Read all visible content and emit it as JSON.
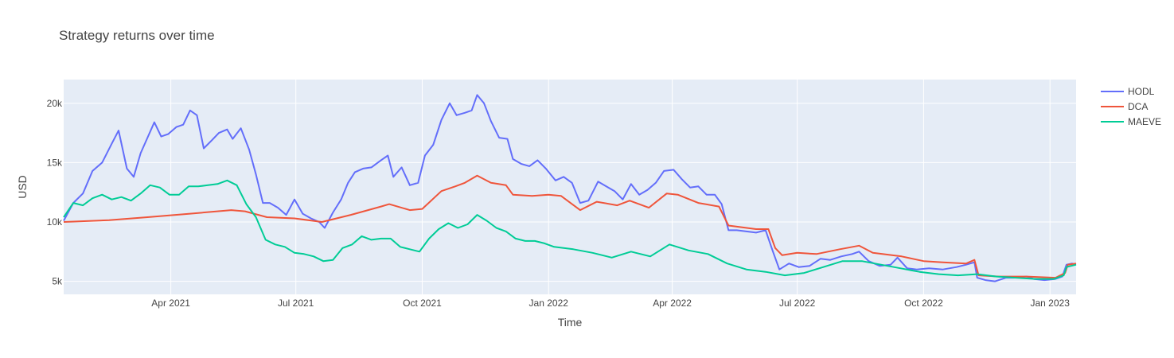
{
  "chart_data": {
    "type": "line",
    "title": "Strategy returns over time",
    "xlabel": "Time",
    "ylabel": "USD",
    "xlim": [
      "2021-01-13",
      "2023-01-20"
    ],
    "ylim": [
      3900,
      22000
    ],
    "x_ticks": [
      {
        "date": "2021-04-01",
        "label": "Apr 2021"
      },
      {
        "date": "2021-07-01",
        "label": "Jul 2021"
      },
      {
        "date": "2021-10-01",
        "label": "Oct 2021"
      },
      {
        "date": "2022-01-01",
        "label": "Jan 2022"
      },
      {
        "date": "2022-04-01",
        "label": "Apr 2022"
      },
      {
        "date": "2022-07-01",
        "label": "Jul 2022"
      },
      {
        "date": "2022-10-01",
        "label": "Oct 2022"
      },
      {
        "date": "2023-01-01",
        "label": "Jan 2023"
      }
    ],
    "y_ticks": [
      {
        "value": 5000,
        "label": "5k"
      },
      {
        "value": 10000,
        "label": "10k"
      },
      {
        "value": 15000,
        "label": "15k"
      },
      {
        "value": 20000,
        "label": "20k"
      }
    ],
    "grid": true,
    "legend_position": "top-right",
    "colors": {
      "plot_bg": "#e5ecf6",
      "grid": "#ffffff"
    },
    "series": [
      {
        "name": "HODL",
        "color": "#636efa",
        "points": [
          [
            "2021-01-13",
            10100
          ],
          [
            "2021-01-20",
            11600
          ],
          [
            "2021-01-27",
            12400
          ],
          [
            "2021-02-03",
            14300
          ],
          [
            "2021-02-10",
            15000
          ],
          [
            "2021-02-17",
            16600
          ],
          [
            "2021-02-22",
            17700
          ],
          [
            "2021-02-28",
            14500
          ],
          [
            "2021-03-05",
            13800
          ],
          [
            "2021-03-10",
            15800
          ],
          [
            "2021-03-15",
            17100
          ],
          [
            "2021-03-20",
            18400
          ],
          [
            "2021-03-25",
            17200
          ],
          [
            "2021-03-30",
            17400
          ],
          [
            "2021-04-05",
            18000
          ],
          [
            "2021-04-10",
            18200
          ],
          [
            "2021-04-15",
            19400
          ],
          [
            "2021-04-20",
            19000
          ],
          [
            "2021-04-25",
            16200
          ],
          [
            "2021-05-01",
            16900
          ],
          [
            "2021-05-06",
            17500
          ],
          [
            "2021-05-12",
            17800
          ],
          [
            "2021-05-16",
            17000
          ],
          [
            "2021-05-22",
            17900
          ],
          [
            "2021-05-28",
            16100
          ],
          [
            "2021-06-02",
            14000
          ],
          [
            "2021-06-07",
            11600
          ],
          [
            "2021-06-12",
            11600
          ],
          [
            "2021-06-18",
            11200
          ],
          [
            "2021-06-24",
            10600
          ],
          [
            "2021-06-30",
            11900
          ],
          [
            "2021-07-06",
            10700
          ],
          [
            "2021-07-12",
            10300
          ],
          [
            "2021-07-18",
            10000
          ],
          [
            "2021-07-22",
            9500
          ],
          [
            "2021-07-28",
            10800
          ],
          [
            "2021-08-03",
            11900
          ],
          [
            "2021-08-08",
            13300
          ],
          [
            "2021-08-13",
            14200
          ],
          [
            "2021-08-19",
            14500
          ],
          [
            "2021-08-25",
            14600
          ],
          [
            "2021-09-01",
            15200
          ],
          [
            "2021-09-06",
            15600
          ],
          [
            "2021-09-10",
            13800
          ],
          [
            "2021-09-16",
            14600
          ],
          [
            "2021-09-22",
            13100
          ],
          [
            "2021-09-28",
            13300
          ],
          [
            "2021-10-03",
            15600
          ],
          [
            "2021-10-09",
            16500
          ],
          [
            "2021-10-15",
            18600
          ],
          [
            "2021-10-21",
            20000
          ],
          [
            "2021-10-26",
            19000
          ],
          [
            "2021-11-01",
            19200
          ],
          [
            "2021-11-06",
            19400
          ],
          [
            "2021-11-10",
            20700
          ],
          [
            "2021-11-15",
            20000
          ],
          [
            "2021-11-20",
            18500
          ],
          [
            "2021-11-26",
            17100
          ],
          [
            "2021-12-02",
            17000
          ],
          [
            "2021-12-06",
            15300
          ],
          [
            "2021-12-12",
            14900
          ],
          [
            "2021-12-18",
            14700
          ],
          [
            "2021-12-24",
            15200
          ],
          [
            "2021-12-30",
            14500
          ],
          [
            "2022-01-06",
            13500
          ],
          [
            "2022-01-12",
            13800
          ],
          [
            "2022-01-18",
            13300
          ],
          [
            "2022-01-24",
            11600
          ],
          [
            "2022-01-30",
            11800
          ],
          [
            "2022-02-06",
            13400
          ],
          [
            "2022-02-12",
            13000
          ],
          [
            "2022-02-18",
            12600
          ],
          [
            "2022-02-24",
            11900
          ],
          [
            "2022-03-02",
            13200
          ],
          [
            "2022-03-08",
            12300
          ],
          [
            "2022-03-14",
            12700
          ],
          [
            "2022-03-20",
            13300
          ],
          [
            "2022-03-26",
            14300
          ],
          [
            "2022-04-02",
            14400
          ],
          [
            "2022-04-08",
            13600
          ],
          [
            "2022-04-14",
            12900
          ],
          [
            "2022-04-20",
            13000
          ],
          [
            "2022-04-26",
            12300
          ],
          [
            "2022-05-02",
            12300
          ],
          [
            "2022-05-07",
            11500
          ],
          [
            "2022-05-12",
            9300
          ],
          [
            "2022-05-18",
            9300
          ],
          [
            "2022-05-25",
            9200
          ],
          [
            "2022-06-01",
            9100
          ],
          [
            "2022-06-08",
            9300
          ],
          [
            "2022-06-13",
            7600
          ],
          [
            "2022-06-18",
            6000
          ],
          [
            "2022-06-25",
            6500
          ],
          [
            "2022-07-02",
            6200
          ],
          [
            "2022-07-10",
            6300
          ],
          [
            "2022-07-18",
            6900
          ],
          [
            "2022-07-25",
            6800
          ],
          [
            "2022-08-02",
            7100
          ],
          [
            "2022-08-10",
            7300
          ],
          [
            "2022-08-15",
            7500
          ],
          [
            "2022-08-22",
            6700
          ],
          [
            "2022-08-30",
            6300
          ],
          [
            "2022-09-07",
            6400
          ],
          [
            "2022-09-12",
            7000
          ],
          [
            "2022-09-19",
            6100
          ],
          [
            "2022-09-26",
            6000
          ],
          [
            "2022-10-05",
            6100
          ],
          [
            "2022-10-15",
            6000
          ],
          [
            "2022-10-25",
            6200
          ],
          [
            "2022-11-01",
            6400
          ],
          [
            "2022-11-07",
            6600
          ],
          [
            "2022-11-09",
            5300
          ],
          [
            "2022-11-15",
            5100
          ],
          [
            "2022-11-22",
            5000
          ],
          [
            "2022-11-30",
            5300
          ],
          [
            "2022-12-06",
            5300
          ],
          [
            "2022-12-15",
            5400
          ],
          [
            "2022-12-20",
            5200
          ],
          [
            "2022-12-28",
            5100
          ],
          [
            "2023-01-05",
            5200
          ],
          [
            "2023-01-10",
            5400
          ],
          [
            "2023-01-13",
            6400
          ],
          [
            "2023-01-17",
            6500
          ],
          [
            "2023-01-20",
            6400
          ]
        ]
      },
      {
        "name": "DCA",
        "color": "#ef553b",
        "points": [
          [
            "2021-01-13",
            10000
          ],
          [
            "2021-02-15",
            10150
          ],
          [
            "2021-03-15",
            10400
          ],
          [
            "2021-04-15",
            10700
          ],
          [
            "2021-05-15",
            11000
          ],
          [
            "2021-05-25",
            10900
          ],
          [
            "2021-06-10",
            10400
          ],
          [
            "2021-06-30",
            10300
          ],
          [
            "2021-07-20",
            10000
          ],
          [
            "2021-08-10",
            10600
          ],
          [
            "2021-09-01",
            11300
          ],
          [
            "2021-09-07",
            11500
          ],
          [
            "2021-09-22",
            11000
          ],
          [
            "2021-10-01",
            11100
          ],
          [
            "2021-10-15",
            12600
          ],
          [
            "2021-10-25",
            13000
          ],
          [
            "2021-11-01",
            13300
          ],
          [
            "2021-11-10",
            13900
          ],
          [
            "2021-11-20",
            13300
          ],
          [
            "2021-12-01",
            13100
          ],
          [
            "2021-12-06",
            12300
          ],
          [
            "2021-12-20",
            12200
          ],
          [
            "2022-01-01",
            12300
          ],
          [
            "2022-01-10",
            12200
          ],
          [
            "2022-01-24",
            11000
          ],
          [
            "2022-02-05",
            11700
          ],
          [
            "2022-02-20",
            11400
          ],
          [
            "2022-03-01",
            11800
          ],
          [
            "2022-03-15",
            11200
          ],
          [
            "2022-03-28",
            12400
          ],
          [
            "2022-04-05",
            12300
          ],
          [
            "2022-04-20",
            11600
          ],
          [
            "2022-05-05",
            11300
          ],
          [
            "2022-05-12",
            9700
          ],
          [
            "2022-06-01",
            9400
          ],
          [
            "2022-06-10",
            9400
          ],
          [
            "2022-06-15",
            7800
          ],
          [
            "2022-06-20",
            7200
          ],
          [
            "2022-07-01",
            7400
          ],
          [
            "2022-07-15",
            7300
          ],
          [
            "2022-08-01",
            7700
          ],
          [
            "2022-08-15",
            8000
          ],
          [
            "2022-08-25",
            7400
          ],
          [
            "2022-09-15",
            7100
          ],
          [
            "2022-10-01",
            6700
          ],
          [
            "2022-10-15",
            6600
          ],
          [
            "2022-11-01",
            6500
          ],
          [
            "2022-11-07",
            6800
          ],
          [
            "2022-11-10",
            5500
          ],
          [
            "2022-11-25",
            5400
          ],
          [
            "2022-12-15",
            5400
          ],
          [
            "2023-01-05",
            5300
          ],
          [
            "2023-01-12",
            5700
          ],
          [
            "2023-01-14",
            6400
          ],
          [
            "2023-01-20",
            6500
          ]
        ]
      },
      {
        "name": "MAEVE",
        "color": "#00cc96",
        "points": [
          [
            "2021-01-13",
            10400
          ],
          [
            "2021-01-20",
            11600
          ],
          [
            "2021-01-27",
            11400
          ],
          [
            "2021-02-03",
            12000
          ],
          [
            "2021-02-10",
            12300
          ],
          [
            "2021-02-17",
            11900
          ],
          [
            "2021-02-24",
            12100
          ],
          [
            "2021-03-03",
            11800
          ],
          [
            "2021-03-10",
            12400
          ],
          [
            "2021-03-17",
            13100
          ],
          [
            "2021-03-24",
            12900
          ],
          [
            "2021-03-31",
            12300
          ],
          [
            "2021-04-07",
            12300
          ],
          [
            "2021-04-14",
            13000
          ],
          [
            "2021-04-21",
            13000
          ],
          [
            "2021-04-28",
            13100
          ],
          [
            "2021-05-05",
            13200
          ],
          [
            "2021-05-12",
            13500
          ],
          [
            "2021-05-19",
            13100
          ],
          [
            "2021-05-26",
            11500
          ],
          [
            "2021-06-02",
            10400
          ],
          [
            "2021-06-09",
            8500
          ],
          [
            "2021-06-16",
            8100
          ],
          [
            "2021-06-23",
            7900
          ],
          [
            "2021-06-30",
            7400
          ],
          [
            "2021-07-07",
            7300
          ],
          [
            "2021-07-14",
            7100
          ],
          [
            "2021-07-21",
            6700
          ],
          [
            "2021-07-28",
            6800
          ],
          [
            "2021-08-04",
            7800
          ],
          [
            "2021-08-11",
            8100
          ],
          [
            "2021-08-18",
            8800
          ],
          [
            "2021-08-25",
            8500
          ],
          [
            "2021-09-01",
            8600
          ],
          [
            "2021-09-08",
            8600
          ],
          [
            "2021-09-15",
            7900
          ],
          [
            "2021-09-22",
            7700
          ],
          [
            "2021-09-29",
            7500
          ],
          [
            "2021-10-06",
            8600
          ],
          [
            "2021-10-13",
            9400
          ],
          [
            "2021-10-20",
            9900
          ],
          [
            "2021-10-27",
            9500
          ],
          [
            "2021-11-03",
            9800
          ],
          [
            "2021-11-10",
            10600
          ],
          [
            "2021-11-17",
            10100
          ],
          [
            "2021-11-24",
            9500
          ],
          [
            "2021-12-01",
            9200
          ],
          [
            "2021-12-08",
            8600
          ],
          [
            "2021-12-15",
            8400
          ],
          [
            "2021-12-22",
            8400
          ],
          [
            "2021-12-29",
            8200
          ],
          [
            "2022-01-05",
            7900
          ],
          [
            "2022-01-19",
            7700
          ],
          [
            "2022-02-02",
            7400
          ],
          [
            "2022-02-16",
            7000
          ],
          [
            "2022-03-02",
            7500
          ],
          [
            "2022-03-16",
            7100
          ],
          [
            "2022-03-30",
            8100
          ],
          [
            "2022-04-13",
            7600
          ],
          [
            "2022-04-27",
            7300
          ],
          [
            "2022-05-11",
            6500
          ],
          [
            "2022-05-25",
            6000
          ],
          [
            "2022-06-08",
            5800
          ],
          [
            "2022-06-22",
            5500
          ],
          [
            "2022-07-06",
            5700
          ],
          [
            "2022-07-20",
            6200
          ],
          [
            "2022-08-03",
            6700
          ],
          [
            "2022-08-17",
            6700
          ],
          [
            "2022-08-31",
            6400
          ],
          [
            "2022-09-14",
            6100
          ],
          [
            "2022-09-28",
            5800
          ],
          [
            "2022-10-12",
            5600
          ],
          [
            "2022-10-26",
            5500
          ],
          [
            "2022-11-09",
            5600
          ],
          [
            "2022-11-23",
            5400
          ],
          [
            "2022-12-07",
            5300
          ],
          [
            "2022-12-21",
            5200
          ],
          [
            "2023-01-04",
            5200
          ],
          [
            "2023-01-11",
            5500
          ],
          [
            "2023-01-13",
            6200
          ],
          [
            "2023-01-20",
            6400
          ]
        ]
      }
    ]
  }
}
